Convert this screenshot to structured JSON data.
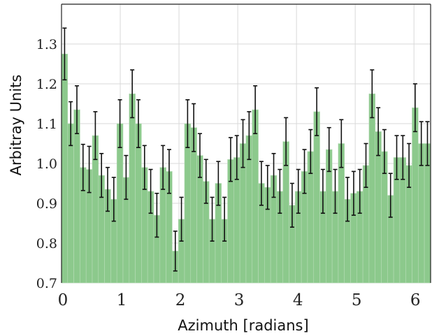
{
  "chart_data": {
    "type": "bar",
    "title": "",
    "xlabel": "Azimuth [radians]",
    "ylabel": "Arbitray Units",
    "xlim": [
      0,
      6.2832
    ],
    "ylim": [
      0.7,
      1.4
    ],
    "xticks": [
      "0",
      "1",
      "2",
      "3",
      "4",
      "5",
      "6"
    ],
    "yticks": [
      "0.7",
      "0.8",
      "0.9",
      "1.0",
      "1.1",
      "1.2",
      "1.3"
    ],
    "grid": true,
    "bar_color": "#8cc98c",
    "errorbar_color": "#111111",
    "bins": 60,
    "bin_width": 0.1047,
    "values": [
      1.275,
      1.1,
      1.135,
      0.99,
      0.985,
      1.07,
      0.97,
      0.935,
      0.91,
      1.1,
      0.965,
      1.175,
      1.1,
      0.99,
      0.93,
      0.87,
      0.99,
      0.98,
      0.78,
      0.86,
      1.1,
      1.09,
      1.02,
      0.955,
      0.86,
      0.95,
      0.86,
      1.01,
      1.015,
      1.05,
      1.07,
      1.135,
      0.95,
      0.94,
      0.97,
      0.93,
      1.055,
      0.895,
      0.93,
      0.98,
      1.03,
      1.13,
      0.93,
      1.035,
      0.93,
      1.05,
      0.91,
      0.925,
      0.93,
      0.995,
      1.175,
      1.08,
      1.03,
      0.92,
      1.015,
      1.015,
      0.995,
      1.14,
      1.05,
      1.05
    ],
    "errors": [
      0.065,
      0.055,
      0.06,
      0.058,
      0.058,
      0.06,
      0.055,
      0.055,
      0.055,
      0.06,
      0.055,
      0.06,
      0.06,
      0.055,
      0.055,
      0.055,
      0.055,
      0.055,
      0.05,
      0.055,
      0.06,
      0.06,
      0.055,
      0.055,
      0.055,
      0.055,
      0.055,
      0.055,
      0.055,
      0.06,
      0.06,
      0.06,
      0.055,
      0.055,
      0.055,
      0.055,
      0.06,
      0.055,
      0.055,
      0.055,
      0.055,
      0.06,
      0.055,
      0.055,
      0.055,
      0.06,
      0.055,
      0.055,
      0.055,
      0.055,
      0.06,
      0.06,
      0.055,
      0.055,
      0.055,
      0.055,
      0.055,
      0.06,
      0.055,
      0.055
    ]
  }
}
